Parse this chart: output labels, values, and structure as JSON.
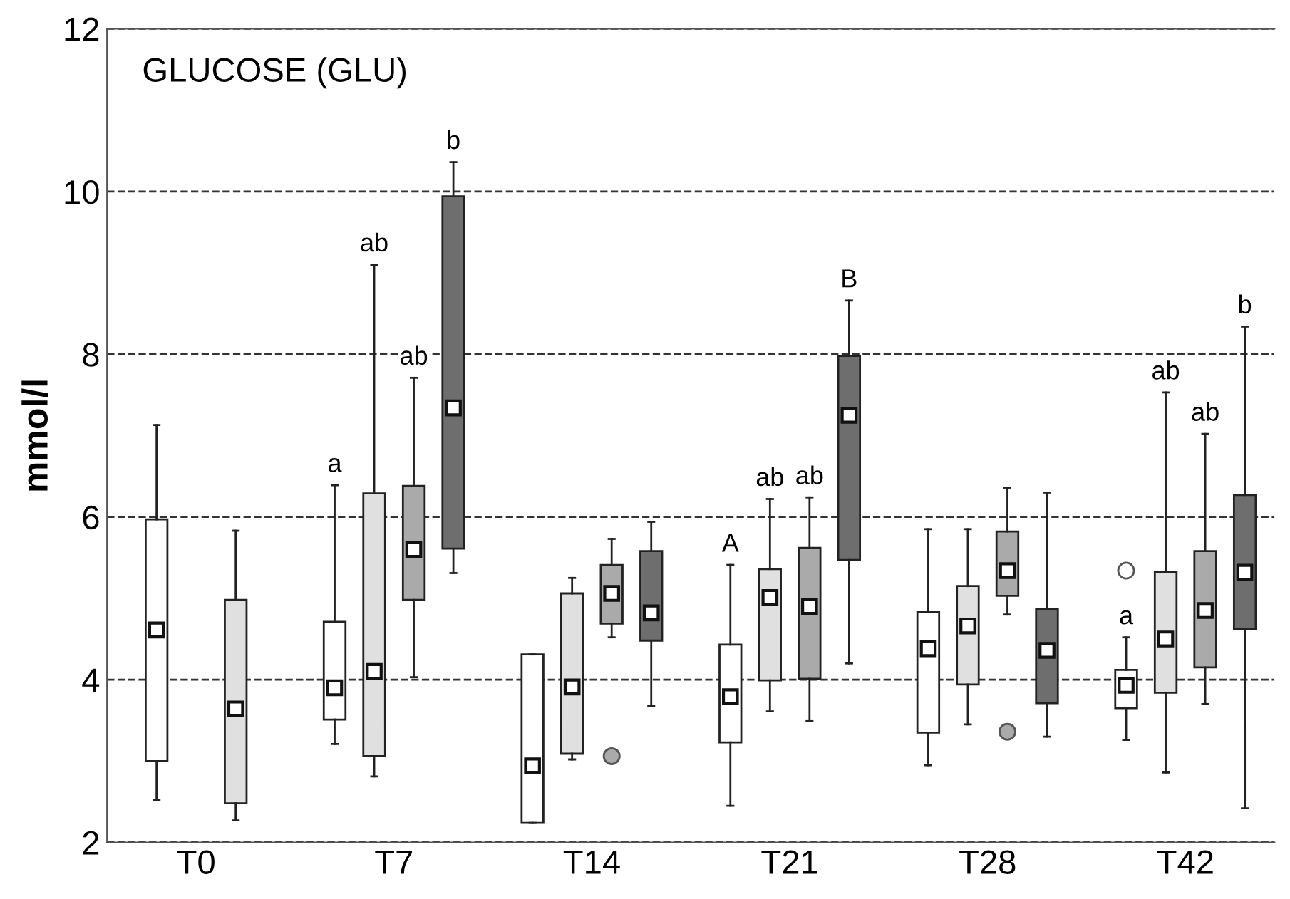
{
  "chart_data": {
    "type": "box",
    "title": "GLUCOSE (GLU)",
    "ylabel": "mmol/l",
    "categories": [
      "T0",
      "T7",
      "T14",
      "T21",
      "T28",
      "T42"
    ],
    "ylim": [
      2,
      12
    ],
    "yticks": [
      2,
      4,
      6,
      8,
      10,
      12
    ],
    "grid": "y",
    "line_style": "dashed",
    "marker": "square",
    "series": [
      {
        "color": "#ffffff",
        "value_labels": [
          null,
          "a",
          null,
          "A",
          null,
          "a"
        ],
        "boxes": [
          {
            "low": 2.52,
            "q1": 3.0,
            "median": 4.61,
            "q3": 5.97,
            "high": 7.13
          },
          {
            "low": 3.21,
            "q1": 3.51,
            "median": 3.9,
            "q3": 4.71,
            "high": 6.39
          },
          {
            "low": 2.24,
            "q1": 2.24,
            "median": 2.94,
            "q3": 4.31,
            "high": 4.31
          },
          {
            "low": 2.45,
            "q1": 3.23,
            "median": 3.79,
            "q3": 4.43,
            "high": 5.41
          },
          {
            "low": 2.95,
            "q1": 3.35,
            "median": 4.38,
            "q3": 4.83,
            "high": 5.85
          },
          {
            "low": 3.26,
            "q1": 3.65,
            "median": 3.93,
            "q3": 4.12,
            "high": 4.52,
            "outliers": [
              5.34
            ]
          }
        ]
      },
      {
        "color": "#e0e0e0",
        "value_labels": [
          null,
          "ab",
          null,
          "ab",
          null,
          "ab"
        ],
        "boxes": [
          {
            "low": 2.27,
            "q1": 2.48,
            "median": 3.64,
            "q3": 4.98,
            "high": 5.83
          },
          {
            "low": 2.81,
            "q1": 3.06,
            "median": 4.1,
            "q3": 6.29,
            "high": 9.1
          },
          {
            "low": 3.02,
            "q1": 3.09,
            "median": 3.91,
            "q3": 5.06,
            "high": 5.25
          },
          {
            "low": 3.61,
            "q1": 3.99,
            "median": 5.01,
            "q3": 5.36,
            "high": 6.22
          },
          {
            "low": 3.45,
            "q1": 3.94,
            "median": 4.66,
            "q3": 5.15,
            "high": 5.85
          },
          {
            "low": 2.86,
            "q1": 3.84,
            "median": 4.5,
            "q3": 5.32,
            "high": 7.53
          }
        ]
      },
      {
        "color": "#aaaaaa",
        "value_labels": [
          null,
          "ab",
          null,
          "ab",
          null,
          "ab"
        ],
        "boxes": [
          null,
          {
            "low": 4.03,
            "q1": 4.98,
            "median": 5.6,
            "q3": 6.38,
            "high": 7.71
          },
          {
            "low": 4.52,
            "q1": 4.69,
            "median": 5.06,
            "q3": 5.41,
            "high": 5.73,
            "outliers": [
              3.06
            ]
          },
          {
            "low": 3.49,
            "q1": 4.01,
            "median": 4.9,
            "q3": 5.62,
            "high": 6.24
          },
          {
            "low": 4.8,
            "q1": 5.03,
            "median": 5.34,
            "q3": 5.82,
            "high": 6.36,
            "outliers": [
              3.36
            ]
          },
          {
            "low": 3.7,
            "q1": 4.15,
            "median": 4.85,
            "q3": 5.58,
            "high": 7.02
          }
        ]
      },
      {
        "color": "#6e6e6e",
        "value_labels": [
          null,
          "b",
          null,
          "B",
          null,
          "b"
        ],
        "boxes": [
          null,
          {
            "low": 5.31,
            "q1": 5.61,
            "median": 7.34,
            "q3": 9.94,
            "high": 10.36
          },
          {
            "low": 3.68,
            "q1": 4.48,
            "median": 4.82,
            "q3": 5.58,
            "high": 5.94
          },
          {
            "low": 4.2,
            "q1": 5.47,
            "median": 7.25,
            "q3": 7.98,
            "high": 8.66
          },
          {
            "low": 3.3,
            "q1": 3.71,
            "median": 4.36,
            "q3": 4.87,
            "high": 6.3
          },
          {
            "low": 2.42,
            "q1": 4.62,
            "median": 5.32,
            "q3": 6.27,
            "high": 8.34
          }
        ]
      }
    ],
    "legend": false
  }
}
